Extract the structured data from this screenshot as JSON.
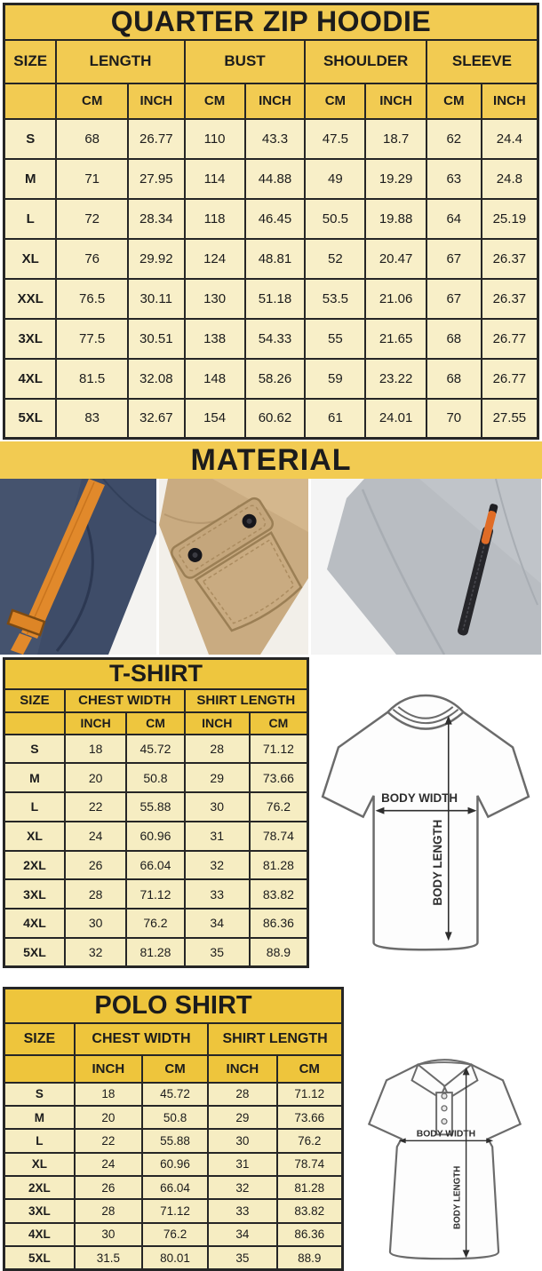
{
  "colors": {
    "hoodie_gold": "#F2CB52",
    "table_gold": "#EEC53C",
    "row_cream": "#F8EFC8",
    "row_cream_light": "#F6EDC2",
    "border": "#262626",
    "navy_fabric": "#3E4C68",
    "orange_accent": "#E1892B",
    "khaki_fabric": "#C9AB81",
    "gray_fabric": "#B9BDC2"
  },
  "hoodie": {
    "title": "QUARTER ZIP HOODIE",
    "groups": [
      "SIZE",
      "LENGTH",
      "BUST",
      "SHOULDER",
      "SLEEVE"
    ],
    "units": [
      "CM",
      "INCH",
      "CM",
      "INCH",
      "CM",
      "INCH",
      "CM",
      "INCH"
    ],
    "rows": [
      [
        "S",
        "68",
        "26.77",
        "110",
        "43.3",
        "47.5",
        "18.7",
        "62",
        "24.4"
      ],
      [
        "M",
        "71",
        "27.95",
        "114",
        "44.88",
        "49",
        "19.29",
        "63",
        "24.8"
      ],
      [
        "L",
        "72",
        "28.34",
        "118",
        "46.45",
        "50.5",
        "19.88",
        "64",
        "25.19"
      ],
      [
        "XL",
        "76",
        "29.92",
        "124",
        "48.81",
        "52",
        "20.47",
        "67",
        "26.37"
      ],
      [
        "XXL",
        "76.5",
        "30.11",
        "130",
        "51.18",
        "53.5",
        "21.06",
        "67",
        "26.37"
      ],
      [
        "3XL",
        "77.5",
        "30.51",
        "138",
        "54.33",
        "55",
        "21.65",
        "68",
        "26.77"
      ],
      [
        "4XL",
        "81.5",
        "32.08",
        "148",
        "58.26",
        "59",
        "23.22",
        "68",
        "26.77"
      ],
      [
        "5XL",
        "83",
        "32.67",
        "154",
        "60.62",
        "61",
        "24.01",
        "70",
        "27.55"
      ]
    ]
  },
  "material": {
    "title": "MATERIAL",
    "photos": [
      "navy fleece with orange drawstring",
      "khaki twill with snap flap pocket",
      "gray heather fleece with zip pocket"
    ]
  },
  "tshirt": {
    "title": "T-SHIRT",
    "groups": [
      "SIZE",
      "CHEST WIDTH",
      "SHIRT LENGTH"
    ],
    "units": [
      "INCH",
      "CM",
      "INCH",
      "CM"
    ],
    "rows": [
      [
        "S",
        "18",
        "45.72",
        "28",
        "71.12"
      ],
      [
        "M",
        "20",
        "50.8",
        "29",
        "73.66"
      ],
      [
        "L",
        "22",
        "55.88",
        "30",
        "76.2"
      ],
      [
        "XL",
        "24",
        "60.96",
        "31",
        "78.74"
      ],
      [
        "2XL",
        "26",
        "66.04",
        "32",
        "81.28"
      ],
      [
        "3XL",
        "28",
        "71.12",
        "33",
        "83.82"
      ],
      [
        "4XL",
        "30",
        "76.2",
        "34",
        "86.36"
      ],
      [
        "5XL",
        "32",
        "81.28",
        "35",
        "88.9"
      ]
    ],
    "diagram": {
      "width_label": "BODY WIDTH",
      "length_label": "BODY LENGTH"
    }
  },
  "polo": {
    "title": "POLO SHIRT",
    "groups": [
      "SIZE",
      "CHEST WIDTH",
      "SHIRT LENGTH"
    ],
    "units": [
      "INCH",
      "CM",
      "INCH",
      "CM"
    ],
    "rows": [
      [
        "S",
        "18",
        "45.72",
        "28",
        "71.12"
      ],
      [
        "M",
        "20",
        "50.8",
        "29",
        "73.66"
      ],
      [
        "L",
        "22",
        "55.88",
        "30",
        "76.2"
      ],
      [
        "XL",
        "24",
        "60.96",
        "31",
        "78.74"
      ],
      [
        "2XL",
        "26",
        "66.04",
        "32",
        "81.28"
      ],
      [
        "3XL",
        "28",
        "71.12",
        "33",
        "83.82"
      ],
      [
        "4XL",
        "30",
        "76.2",
        "34",
        "86.36"
      ],
      [
        "5XL",
        "31.5",
        "80.01",
        "35",
        "88.9"
      ]
    ],
    "diagram": {
      "width_label": "BODY WIDTH",
      "length_label": "BODY LENGTH"
    }
  }
}
